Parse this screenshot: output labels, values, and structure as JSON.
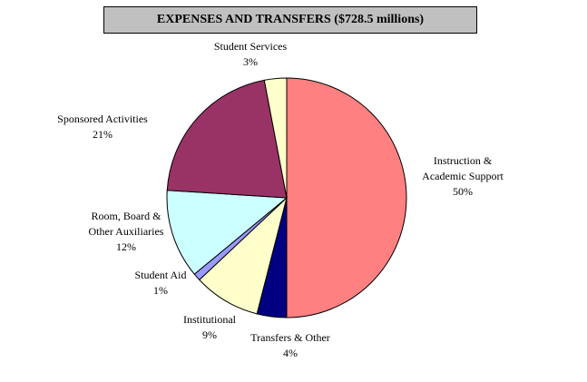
{
  "chart_data": {
    "type": "pie",
    "title": "EXPENSES AND TRANSFERS ($728.5 millions)",
    "start_angle_deg": 0,
    "direction": "clockwise",
    "slices": [
      {
        "label_lines": [
          "Instruction &",
          "Academic Support"
        ],
        "percent_label": "50%",
        "value": 50,
        "color": "#ff8080"
      },
      {
        "label_lines": [
          "Transfers & Other"
        ],
        "percent_label": "4%",
        "value": 4,
        "color": "#000080"
      },
      {
        "label_lines": [
          "Institutional"
        ],
        "percent_label": "9%",
        "value": 9,
        "color": "#ffffcc"
      },
      {
        "label_lines": [
          "Student Aid"
        ],
        "percent_label": "1%",
        "value": 1,
        "color": "#9999ff"
      },
      {
        "label_lines": [
          "Room, Board &",
          "Other Auxiliaries"
        ],
        "percent_label": "12%",
        "value": 12,
        "color": "#ccffff"
      },
      {
        "label_lines": [
          "Sponsored Activities"
        ],
        "percent_label": "21%",
        "value": 21,
        "color": "#993366"
      },
      {
        "label_lines": [
          "Student Services"
        ],
        "percent_label": "3%",
        "value": 3,
        "color": "#ffffcc"
      }
    ]
  }
}
